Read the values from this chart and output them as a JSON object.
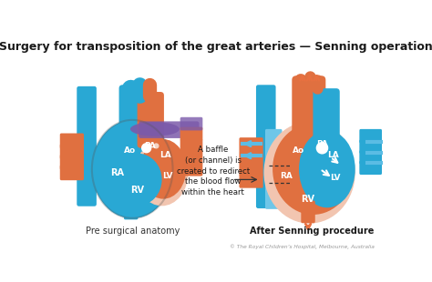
{
  "title": "Surgery for transposition of the great arteries — Senning operation",
  "title_fontsize": 9.0,
  "title_color": "#1a1a1a",
  "subtitle_left": "Pre surgical anatomy",
  "subtitle_right": "After Senning procedure",
  "annotation": "A baffle\n(or channel) is\ncreated to redirect\nthe blood flow\nwithin the heart",
  "copyright": "© The Royal Children’s Hospital, Melbourne, Australia",
  "bg_color": "#ffffff",
  "blue": "#29a8d4",
  "blue_light": "#6ec6e8",
  "red": "#d94f2a",
  "red_med": "#e07040",
  "orange_lt": "#f0a080",
  "pink": "#f2c5b0",
  "purple": "#7b5aaa",
  "arrow_blue": "#5bbce4",
  "arrow_orange": "#e87040"
}
